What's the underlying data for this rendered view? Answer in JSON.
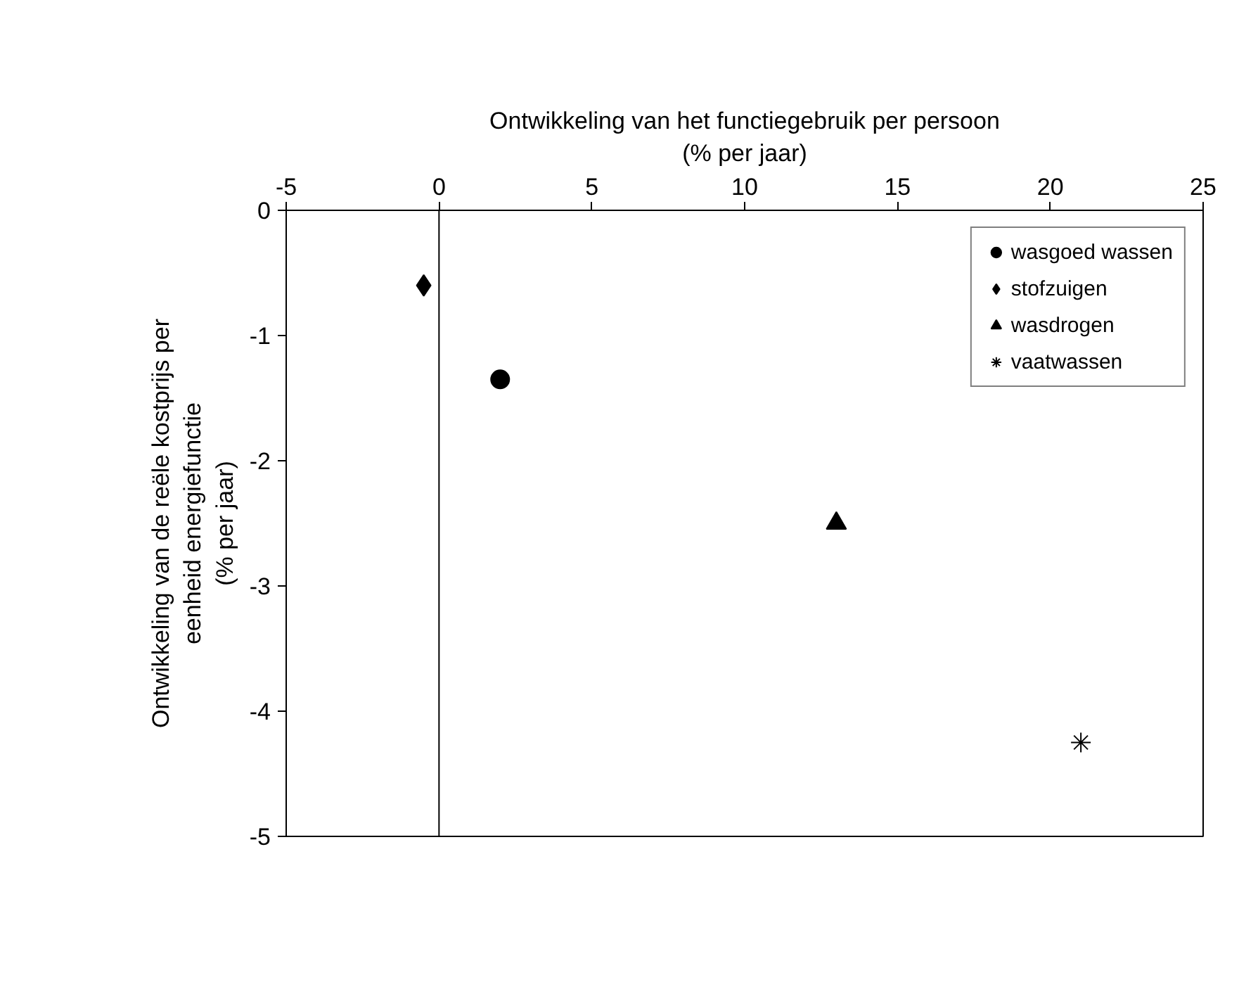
{
  "chart_data": {
    "type": "scatter",
    "xlabel": "Ontwikkeling van het functiegebruik per persoon\n(% per jaar)",
    "ylabel": "Ontwikkeling van de reële kostprijs per\neenheid energiefunctie\n(% per jaar)",
    "xlim": [
      -5,
      25
    ],
    "xticks": [
      -5,
      0,
      5,
      10,
      15,
      20,
      25
    ],
    "ylim": [
      -5,
      0
    ],
    "yticks": [
      0,
      -1,
      -2,
      -3,
      -4,
      -5
    ],
    "grid": false,
    "legend": "top right",
    "ref_lines": [
      {
        "axis": "x",
        "value": 0,
        "label": null,
        "color": "#000000",
        "line_style": "solid"
      }
    ],
    "series": [
      {
        "name": "wasgoed wassen",
        "color": "#000000",
        "marker": "circle",
        "x": [
          2.0
        ],
        "values": [
          -1.35
        ]
      },
      {
        "name": "stofzuigen",
        "color": "#000000",
        "marker": "diamond",
        "x": [
          -0.5
        ],
        "values": [
          -0.6
        ]
      },
      {
        "name": "wasdrogen",
        "color": "#000000",
        "marker": "triangle",
        "x": [
          13.0
        ],
        "values": [
          -2.5
        ]
      },
      {
        "name": "vaatwassen",
        "color": "#000000",
        "marker": "cross",
        "x": [
          21.0
        ],
        "values": [
          -4.25
        ]
      }
    ]
  }
}
